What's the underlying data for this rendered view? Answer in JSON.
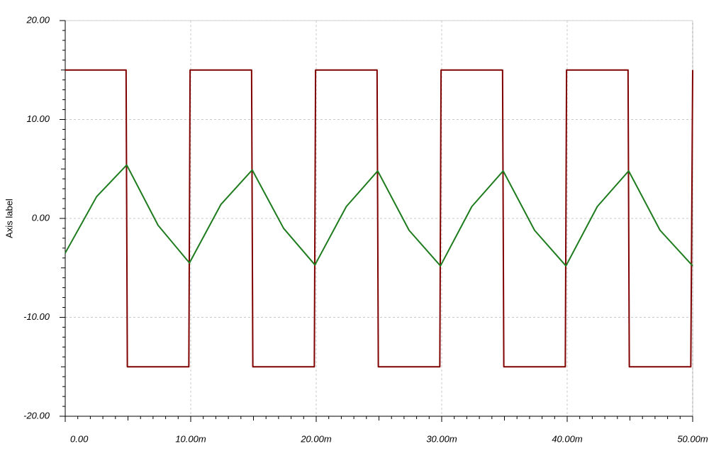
{
  "chart_data": {
    "type": "line",
    "y_label": "Axis label",
    "xlim": [
      0,
      0.05
    ],
    "ylim": [
      -20,
      20
    ],
    "xticks": [
      {
        "value": 0,
        "label": "0.00"
      },
      {
        "value": 0.01,
        "label": "10.00m"
      },
      {
        "value": 0.02,
        "label": "20.00m"
      },
      {
        "value": 0.03,
        "label": "30.00m"
      },
      {
        "value": 0.04,
        "label": "40.00m"
      },
      {
        "value": 0.05,
        "label": "50.00m"
      }
    ],
    "yticks": [
      {
        "value": -20,
        "label": "-20.00"
      },
      {
        "value": -10,
        "label": "-10.00"
      },
      {
        "value": 0,
        "label": "0.00"
      },
      {
        "value": 10,
        "label": "10.00"
      },
      {
        "value": 20,
        "label": "20.00"
      }
    ],
    "grid": true,
    "series": [
      {
        "color": "#800000",
        "x": [
          0,
          0.00485,
          0.00495,
          0.00985,
          0.00995,
          0.01485,
          0.01495,
          0.01985,
          0.01995,
          0.02485,
          0.02495,
          0.02985,
          0.02995,
          0.03485,
          0.03495,
          0.03985,
          0.03995,
          0.04485,
          0.04495,
          0.04985,
          0.05
        ],
        "values": [
          15,
          15,
          -15,
          -15,
          15,
          15,
          -15,
          -15,
          15,
          15,
          -15,
          -15,
          15,
          15,
          -15,
          -15,
          15,
          15,
          -15,
          -15,
          15
        ]
      },
      {
        "color": "#1e7b1e",
        "x": [
          0,
          0.0025,
          0.0049,
          0.0074,
          0.0099,
          0.0124,
          0.0149,
          0.0174,
          0.0199,
          0.0224,
          0.0249,
          0.0274,
          0.0299,
          0.0324,
          0.0349,
          0.0374,
          0.0399,
          0.0424,
          0.0449,
          0.0474,
          0.05
        ],
        "values": [
          -3.5,
          2.2,
          5.4,
          -0.7,
          -4.5,
          1.4,
          4.9,
          -1.0,
          -4.7,
          1.2,
          4.8,
          -1.2,
          -4.8,
          1.2,
          4.8,
          -1.2,
          -4.8,
          1.2,
          4.8,
          -1.2,
          -4.8
        ]
      }
    ]
  }
}
